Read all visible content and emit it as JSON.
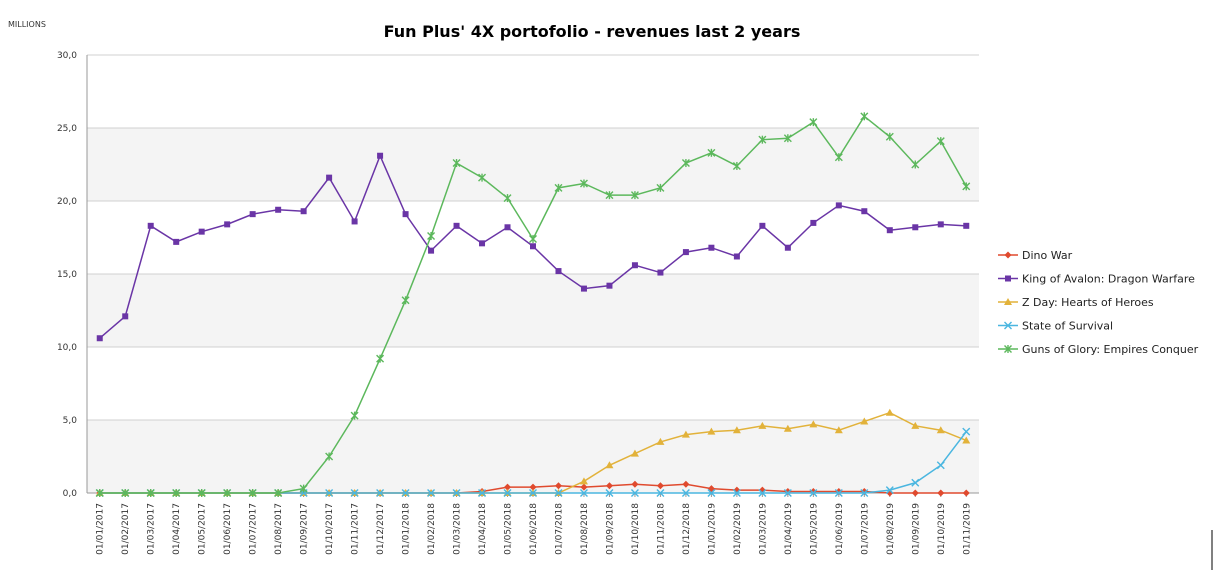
{
  "chart_data": {
    "type": "line",
    "title": "Fun Plus' 4X portofolio - revenues last 2 years",
    "y_unit_label": "MILLIONS",
    "xlabel": "",
    "ylabel": "MILLIONS",
    "ylim": [
      0,
      30
    ],
    "y_ticks": [
      0,
      5,
      10,
      15,
      20,
      25,
      30
    ],
    "y_tick_labels": [
      "0,0",
      "5,0",
      "10,0",
      "15,0",
      "20,0",
      "25,0",
      "30,0"
    ],
    "grid": true,
    "legend_position": "right",
    "categories": [
      "01/01/2017",
      "01/02/2017",
      "01/03/2017",
      "01/04/2017",
      "01/05/2017",
      "01/06/2017",
      "01/07/2017",
      "01/08/2017",
      "01/09/2017",
      "01/10/2017",
      "01/11/2017",
      "01/12/2017",
      "01/01/2018",
      "01/02/2018",
      "01/03/2018",
      "01/04/2018",
      "01/05/2018",
      "01/06/2018",
      "01/07/2018",
      "01/08/2018",
      "01/09/2018",
      "01/10/2018",
      "01/11/2018",
      "01/12/2018",
      "01/01/2019",
      "01/02/2019",
      "01/03/2019",
      "01/04/2019",
      "01/05/2019",
      "01/06/2019",
      "01/07/2019",
      "01/08/2019",
      "01/09/2019",
      "01/10/2019",
      "01/11/2019"
    ],
    "series": [
      {
        "name": "Dino War",
        "color": "#e04a2e",
        "marker": "diamond",
        "values": [
          0,
          0,
          0,
          0,
          0,
          0,
          0,
          0,
          0,
          0,
          0,
          0,
          0,
          0,
          0,
          0.1,
          0.4,
          0.4,
          0.5,
          0.4,
          0.5,
          0.6,
          0.5,
          0.6,
          0.3,
          0.2,
          0.2,
          0.1,
          0.1,
          0.1,
          0.1,
          0,
          0,
          0,
          0
        ]
      },
      {
        "name": "King of Avalon: Dragon Warfare",
        "color": "#6a35a6",
        "marker": "square",
        "values": [
          10.6,
          12.1,
          18.3,
          17.2,
          17.9,
          18.4,
          19.1,
          19.4,
          19.3,
          21.6,
          18.6,
          23.1,
          19.1,
          16.6,
          18.3,
          17.1,
          18.2,
          16.9,
          15.2,
          14.0,
          14.2,
          15.6,
          15.1,
          16.5,
          16.8,
          16.2,
          18.3,
          16.8,
          18.5,
          19.7,
          19.3,
          18.0,
          18.2,
          18.4,
          18.3
        ]
      },
      {
        "name": "Z Day: Hearts of Heroes",
        "color": "#e2b23a",
        "marker": "triangle",
        "values": [
          0,
          0,
          0,
          0,
          0,
          0,
          0,
          0,
          0,
          0,
          0,
          0,
          0,
          0,
          0,
          0,
          0,
          0,
          0,
          0.8,
          1.9,
          2.7,
          3.5,
          4.0,
          4.2,
          4.3,
          4.6,
          4.4,
          4.7,
          4.3,
          4.9,
          5.5,
          4.6,
          4.3,
          3.6
        ]
      },
      {
        "name": "State of Survival",
        "color": "#4ab6e0",
        "marker": "x",
        "values": [
          0,
          0,
          0,
          0,
          0,
          0,
          0,
          0,
          0,
          0,
          0,
          0,
          0,
          0,
          0,
          0,
          0,
          0,
          0,
          0,
          0,
          0,
          0,
          0,
          0,
          0,
          0,
          0,
          0,
          0,
          0,
          0.2,
          0.7,
          1.9,
          4.2
        ]
      },
      {
        "name": "Guns of Glory: Empires Conquer",
        "color": "#5cb85c",
        "marker": "star",
        "values": [
          0,
          0,
          0,
          0,
          0,
          0,
          0,
          0,
          0.3,
          2.5,
          5.3,
          9.2,
          13.2,
          17.6,
          22.6,
          21.6,
          20.2,
          17.4,
          20.9,
          21.2,
          20.4,
          20.4,
          20.9,
          22.6,
          23.3,
          22.4,
          24.2,
          24.3,
          25.4,
          23.0,
          25.8,
          24.4,
          22.5,
          24.1,
          21.0
        ]
      }
    ]
  }
}
